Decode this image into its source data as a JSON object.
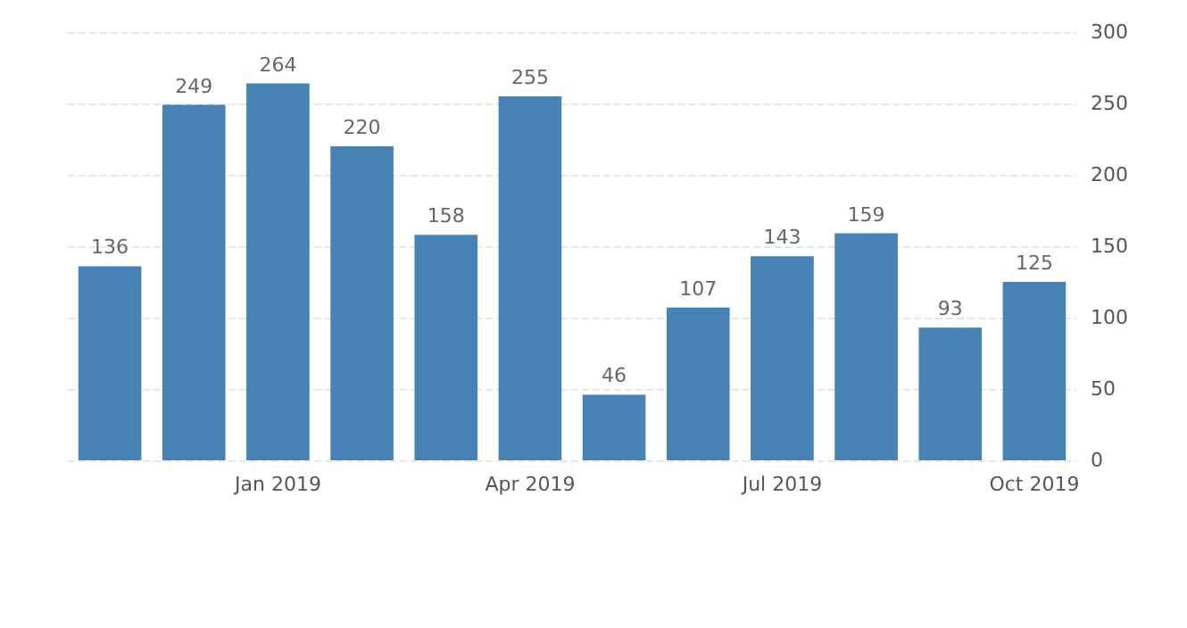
{
  "chart_data": {
    "type": "bar",
    "categories": [
      null,
      null,
      "Jan 2019",
      null,
      null,
      "Apr 2019",
      null,
      null,
      "Jul 2019",
      null,
      null,
      "Oct 2019"
    ],
    "values": [
      136,
      249,
      264,
      220,
      158,
      255,
      46,
      107,
      143,
      159,
      93,
      125
    ],
    "color": "#4682b4",
    "ylim": [
      0,
      300
    ],
    "yticks": [
      0,
      50,
      100,
      150,
      200,
      250,
      300
    ],
    "grid": "y",
    "data_labels": true
  }
}
